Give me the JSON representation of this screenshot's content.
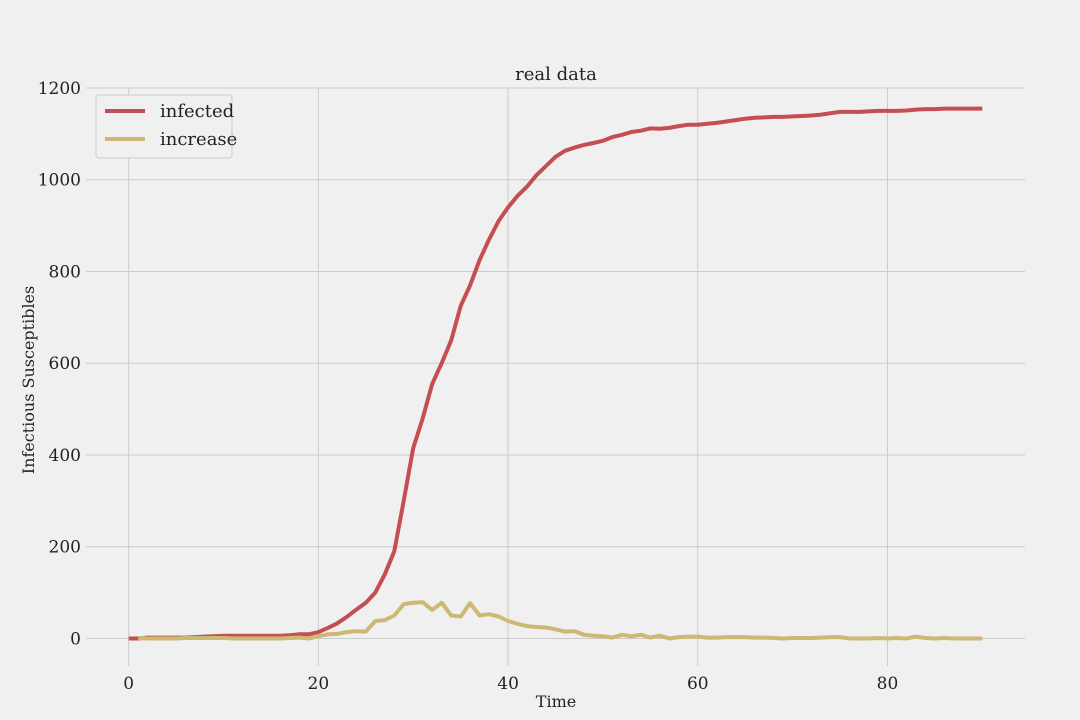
{
  "chart_data": {
    "type": "line",
    "title": "real data",
    "xlabel": "Time",
    "ylabel": "Infectious Susceptibles",
    "xlim": [
      -4.5,
      94.5
    ],
    "ylim": [
      -60,
      1200
    ],
    "xticks": [
      0,
      20,
      40,
      60,
      80
    ],
    "yticks": [
      0,
      200,
      400,
      600,
      800,
      1000,
      1200
    ],
    "grid": true,
    "legend_position": "top-left",
    "series": [
      {
        "name": "infected",
        "color": "#c44e52",
        "points": [
          [
            0,
            0
          ],
          [
            1,
            0
          ],
          [
            2,
            2
          ],
          [
            3,
            2
          ],
          [
            4,
            2
          ],
          [
            5,
            2
          ],
          [
            6,
            2
          ],
          [
            7,
            3
          ],
          [
            8,
            4
          ],
          [
            9,
            5
          ],
          [
            10,
            6
          ],
          [
            11,
            6
          ],
          [
            12,
            6
          ],
          [
            13,
            6
          ],
          [
            14,
            6
          ],
          [
            15,
            6
          ],
          [
            16,
            6
          ],
          [
            17,
            7
          ],
          [
            18,
            9
          ],
          [
            19,
            9
          ],
          [
            20,
            14
          ],
          [
            21,
            23
          ],
          [
            22,
            33
          ],
          [
            23,
            47
          ],
          [
            24,
            63
          ],
          [
            25,
            78
          ],
          [
            26,
            100
          ],
          [
            27,
            140
          ],
          [
            28,
            190
          ],
          [
            29,
            300
          ],
          [
            30,
            415
          ],
          [
            31,
            480
          ],
          [
            32,
            555
          ],
          [
            33,
            600
          ],
          [
            34,
            650
          ],
          [
            35,
            725
          ],
          [
            36,
            770
          ],
          [
            37,
            825
          ],
          [
            38,
            870
          ],
          [
            39,
            910
          ],
          [
            40,
            940
          ],
          [
            41,
            965
          ],
          [
            42,
            985
          ],
          [
            43,
            1010
          ],
          [
            44,
            1030
          ],
          [
            45,
            1050
          ],
          [
            46,
            1063
          ],
          [
            47,
            1070
          ],
          [
            48,
            1076
          ],
          [
            49,
            1080
          ],
          [
            50,
            1085
          ],
          [
            51,
            1093
          ],
          [
            52,
            1098
          ],
          [
            53,
            1104
          ],
          [
            54,
            1107
          ],
          [
            55,
            1112
          ],
          [
            56,
            1111
          ],
          [
            57,
            1113
          ],
          [
            58,
            1117
          ],
          [
            59,
            1120
          ],
          [
            60,
            1120
          ],
          [
            61,
            1122
          ],
          [
            62,
            1124
          ],
          [
            63,
            1127
          ],
          [
            64,
            1130
          ],
          [
            65,
            1133
          ],
          [
            66,
            1135
          ],
          [
            67,
            1136
          ],
          [
            68,
            1137
          ],
          [
            69,
            1137
          ],
          [
            70,
            1138
          ],
          [
            71,
            1139
          ],
          [
            72,
            1140
          ],
          [
            73,
            1142
          ],
          [
            74,
            1145
          ],
          [
            75,
            1148
          ],
          [
            76,
            1148
          ],
          [
            77,
            1148
          ],
          [
            78,
            1149
          ],
          [
            79,
            1150
          ],
          [
            80,
            1150
          ],
          [
            81,
            1150
          ],
          [
            82,
            1151
          ],
          [
            83,
            1153
          ],
          [
            84,
            1154
          ],
          [
            85,
            1154
          ],
          [
            86,
            1155
          ],
          [
            87,
            1155
          ],
          [
            88,
            1155
          ],
          [
            89,
            1155
          ],
          [
            90,
            1155
          ]
        ]
      },
      {
        "name": "increase",
        "color": "#ccb974",
        "points": [
          [
            1,
            1
          ],
          [
            2,
            0
          ],
          [
            3,
            0
          ],
          [
            4,
            0
          ],
          [
            5,
            0
          ],
          [
            6,
            1
          ],
          [
            7,
            1
          ],
          [
            8,
            1
          ],
          [
            9,
            1
          ],
          [
            10,
            1
          ],
          [
            11,
            0
          ],
          [
            12,
            0
          ],
          [
            13,
            0
          ],
          [
            14,
            0
          ],
          [
            15,
            0
          ],
          [
            16,
            0
          ],
          [
            17,
            1
          ],
          [
            18,
            2
          ],
          [
            19,
            0
          ],
          [
            20,
            5
          ],
          [
            21,
            9
          ],
          [
            22,
            10
          ],
          [
            23,
            14
          ],
          [
            24,
            16
          ],
          [
            25,
            15
          ],
          [
            26,
            38
          ],
          [
            27,
            40
          ],
          [
            28,
            50
          ],
          [
            29,
            75
          ],
          [
            30,
            78
          ],
          [
            31,
            79
          ],
          [
            32,
            62
          ],
          [
            33,
            78
          ],
          [
            34,
            50
          ],
          [
            35,
            48
          ],
          [
            36,
            77
          ],
          [
            37,
            50
          ],
          [
            38,
            53
          ],
          [
            39,
            48
          ],
          [
            40,
            38
          ],
          [
            41,
            32
          ],
          [
            42,
            27
          ],
          [
            43,
            25
          ],
          [
            44,
            24
          ],
          [
            45,
            20
          ],
          [
            46,
            15
          ],
          [
            47,
            16
          ],
          [
            48,
            8
          ],
          [
            49,
            6
          ],
          [
            50,
            5
          ],
          [
            51,
            2
          ],
          [
            52,
            8
          ],
          [
            53,
            5
          ],
          [
            54,
            8
          ],
          [
            55,
            2
          ],
          [
            56,
            6
          ],
          [
            57,
            0
          ],
          [
            58,
            3
          ],
          [
            59,
            4
          ],
          [
            60,
            4
          ],
          [
            61,
            2
          ],
          [
            62,
            2
          ],
          [
            63,
            3
          ],
          [
            64,
            3
          ],
          [
            65,
            3
          ],
          [
            66,
            2
          ],
          [
            67,
            2
          ],
          [
            68,
            1
          ],
          [
            69,
            0
          ],
          [
            70,
            1
          ],
          [
            71,
            1
          ],
          [
            72,
            1
          ],
          [
            73,
            2
          ],
          [
            74,
            3
          ],
          [
            75,
            3
          ],
          [
            76,
            0
          ],
          [
            77,
            0
          ],
          [
            78,
            0
          ],
          [
            79,
            1
          ],
          [
            80,
            0
          ],
          [
            81,
            1
          ],
          [
            82,
            0
          ],
          [
            83,
            4
          ],
          [
            84,
            1
          ],
          [
            85,
            0
          ],
          [
            86,
            1
          ],
          [
            87,
            0
          ],
          [
            88,
            0
          ],
          [
            89,
            0
          ],
          [
            90,
            0
          ]
        ]
      }
    ]
  }
}
